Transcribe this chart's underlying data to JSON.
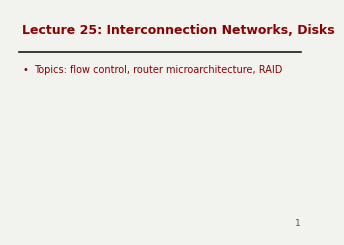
{
  "title": "Lecture 25: Interconnection Networks, Disks",
  "title_color": "#8B0000",
  "title_fontsize": 9.0,
  "bullet_text": "Topics: flow control, router microarchitecture, RAID",
  "bullet_color": "#8B0000",
  "bullet_fontsize": 7.0,
  "background_color": "#F2F2EE",
  "line_color": "#1a1a1a",
  "page_number": "1",
  "page_number_color": "#555555",
  "page_number_fontsize": 6.5
}
